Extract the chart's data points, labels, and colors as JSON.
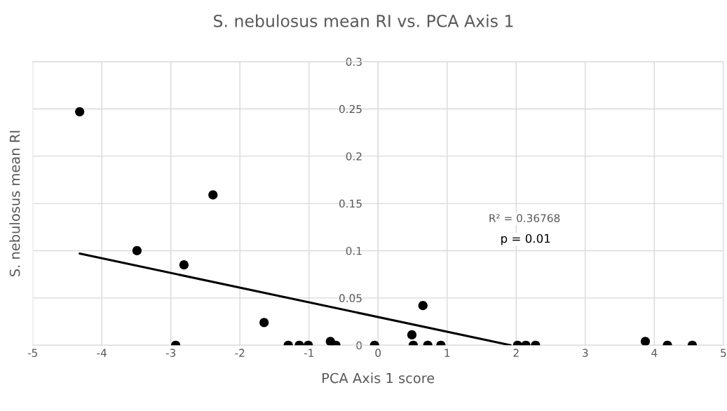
{
  "chart_data": {
    "type": "scatter",
    "title": "S. nebulosus mean RI vs. PCA Axis 1",
    "xlabel": "PCA Axis 1 score",
    "ylabel": "S. nebulosus mean RI",
    "series": [
      {
        "color": "#000000",
        "marker": "circle",
        "x": [
          -4.32,
          -3.49,
          -2.81,
          -2.39,
          -1.65,
          -2.93,
          -1.3,
          -1.14,
          -1.01,
          -0.69,
          -0.61,
          -0.05,
          0.49,
          0.51,
          0.72,
          0.91,
          0.65,
          2.02,
          2.14,
          2.28,
          3.87,
          4.19,
          4.55
        ],
        "values": [
          0.247,
          0.1,
          0.085,
          0.159,
          0.024,
          0,
          0,
          0,
          0,
          0.004,
          0,
          0,
          0.011,
          0,
          0,
          0,
          0.042,
          0,
          0,
          0,
          0.004,
          0,
          0
        ]
      },
      {
        "type": "line",
        "color": "#000000",
        "marker": "none",
        "line_style": "solid",
        "x": [
          -4.32,
          1.92
        ],
        "values": [
          0.097,
          0
        ]
      }
    ],
    "annotations": [
      "R² = 0.36768",
      "p = 0.01"
    ],
    "xlim": [
      -5,
      5
    ],
    "ylim": [
      0,
      0.3
    ],
    "xticks": [
      -5,
      -4,
      -3,
      -2,
      -1,
      0,
      1,
      2,
      3,
      4,
      5
    ],
    "yticks": [
      0,
      0.05,
      0.1,
      0.15,
      0.2,
      0.25,
      0.3
    ],
    "grid": true,
    "legend": false
  }
}
